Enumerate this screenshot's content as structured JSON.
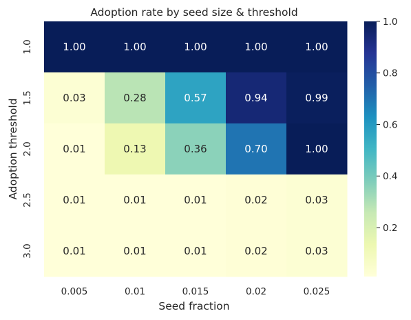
{
  "chart_data": {
    "type": "heatmap",
    "title": "Adoption rate by seed size & threshold",
    "xlabel": "Seed fraction",
    "ylabel": "Adoption threshold",
    "x_categories": [
      "0.005",
      "0.01",
      "0.015",
      "0.02",
      "0.025"
    ],
    "y_categories": [
      "1.0",
      "1.5",
      "2.0",
      "2.5",
      "3.0"
    ],
    "values": [
      [
        1.0,
        1.0,
        1.0,
        1.0,
        1.0
      ],
      [
        0.03,
        0.28,
        0.57,
        0.94,
        0.99
      ],
      [
        0.01,
        0.13,
        0.36,
        0.7,
        1.0
      ],
      [
        0.01,
        0.01,
        0.01,
        0.02,
        0.03
      ],
      [
        0.01,
        0.01,
        0.01,
        0.02,
        0.03
      ]
    ],
    "value_format": "2f",
    "colormap": "YlGnBu",
    "colorbar": {
      "ticks": [
        0.2,
        0.4,
        0.6,
        0.8,
        1.0
      ],
      "tick_labels": [
        "0.2",
        "0.4",
        "0.6",
        "0.8",
        "1.0"
      ],
      "range": [
        0.01,
        1.0
      ]
    }
  }
}
